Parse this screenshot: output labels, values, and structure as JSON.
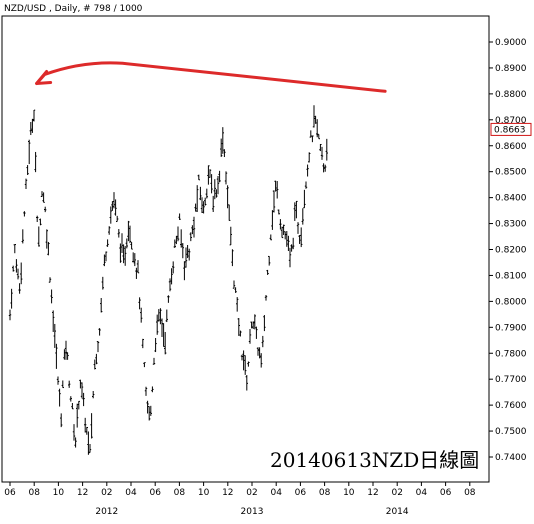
{
  "header": {
    "title": "NZD/USD , Daily, # 798 / 1000"
  },
  "watermark": {
    "text": "20140613NZD日線圖"
  },
  "colors": {
    "bars": "#000000",
    "arrow": "#dd2a2a",
    "price_box": "#d01414",
    "border": "#000000"
  },
  "chart_data": {
    "type": "line",
    "title": "NZD/USD , Daily, # 798 / 1000",
    "xlabel": "",
    "ylabel": "",
    "ylim": [
      0.73,
      0.91
    ],
    "grid": false,
    "legend": "none",
    "y_ticks": [
      "0.9000",
      "0.8900",
      "0.8800",
      "0.8700",
      "0.8600",
      "0.8500",
      "0.8400",
      "0.8300",
      "0.8200",
      "0.8100",
      "0.8000",
      "0.7900",
      "0.7800",
      "0.7700",
      "0.7600",
      "0.7500",
      "0.7400"
    ],
    "x_ticks": [
      "06",
      "08",
      "10",
      "12",
      "02",
      "04",
      "06",
      "08",
      "10",
      "12",
      "02",
      "04",
      "06",
      "08",
      "10",
      "12",
      "02",
      "04",
      "06",
      "08"
    ],
    "years": [
      {
        "label": "2012",
        "tick_index": 4
      },
      {
        "label": "2013",
        "tick_index": 10
      },
      {
        "label": "2014",
        "tick_index": 16
      }
    ],
    "last_price": "0.8663",
    "x_range_months": [
      0,
      26
    ],
    "series": [
      {
        "values": [
          [
            0.0,
            0.795
          ],
          [
            0.4,
            0.82
          ],
          [
            0.8,
            0.805
          ],
          [
            1.2,
            0.835
          ],
          [
            1.6,
            0.86
          ],
          [
            2.0,
            0.875
          ],
          [
            2.3,
            0.82
          ],
          [
            2.7,
            0.845
          ],
          [
            3.0,
            0.83
          ],
          [
            3.4,
            0.805
          ],
          [
            3.8,
            0.78
          ],
          [
            4.2,
            0.755
          ],
          [
            4.6,
            0.785
          ],
          [
            5.0,
            0.765
          ],
          [
            5.4,
            0.745
          ],
          [
            5.8,
            0.77
          ],
          [
            6.2,
            0.755
          ],
          [
            6.6,
            0.74
          ],
          [
            7.0,
            0.775
          ],
          [
            7.4,
            0.79
          ],
          [
            7.8,
            0.815
          ],
          [
            8.2,
            0.83
          ],
          [
            8.6,
            0.84
          ],
          [
            9.0,
            0.825
          ],
          [
            9.4,
            0.815
          ],
          [
            9.8,
            0.83
          ],
          [
            10.2,
            0.82
          ],
          [
            10.6,
            0.81
          ],
          [
            11.0,
            0.78
          ],
          [
            11.3,
            0.76
          ],
          [
            11.6,
            0.755
          ],
          [
            12.0,
            0.785
          ],
          [
            12.4,
            0.795
          ],
          [
            12.8,
            0.785
          ],
          [
            13.2,
            0.805
          ],
          [
            13.6,
            0.82
          ],
          [
            14.0,
            0.83
          ],
          [
            14.4,
            0.815
          ],
          [
            14.8,
            0.82
          ],
          [
            15.2,
            0.83
          ],
          [
            15.6,
            0.845
          ],
          [
            16.0,
            0.835
          ],
          [
            16.4,
            0.85
          ],
          [
            16.8,
            0.84
          ],
          [
            17.2,
            0.845
          ],
          [
            17.6,
            0.865
          ],
          [
            18.0,
            0.84
          ],
          [
            18.4,
            0.815
          ],
          [
            18.8,
            0.795
          ],
          [
            19.2,
            0.78
          ],
          [
            19.6,
            0.77
          ],
          [
            20.0,
            0.795
          ],
          [
            20.4,
            0.785
          ],
          [
            20.8,
            0.775
          ],
          [
            21.2,
            0.805
          ],
          [
            21.6,
            0.83
          ],
          [
            22.0,
            0.845
          ],
          [
            22.4,
            0.83
          ],
          [
            22.8,
            0.825
          ],
          [
            23.2,
            0.815
          ],
          [
            23.6,
            0.835
          ],
          [
            24.0,
            0.825
          ],
          [
            24.4,
            0.845
          ],
          [
            24.8,
            0.86
          ],
          [
            25.2,
            0.87
          ],
          [
            25.6,
            0.86
          ],
          [
            26.0,
            0.85
          ],
          [
            26.3,
            0.8663
          ]
        ]
      }
    ],
    "annotation": {
      "type": "arrow",
      "from": [
        31.0,
        0.881
      ],
      "via": [
        6.0,
        0.892
      ],
      "to": [
        2.2,
        0.884
      ]
    }
  }
}
